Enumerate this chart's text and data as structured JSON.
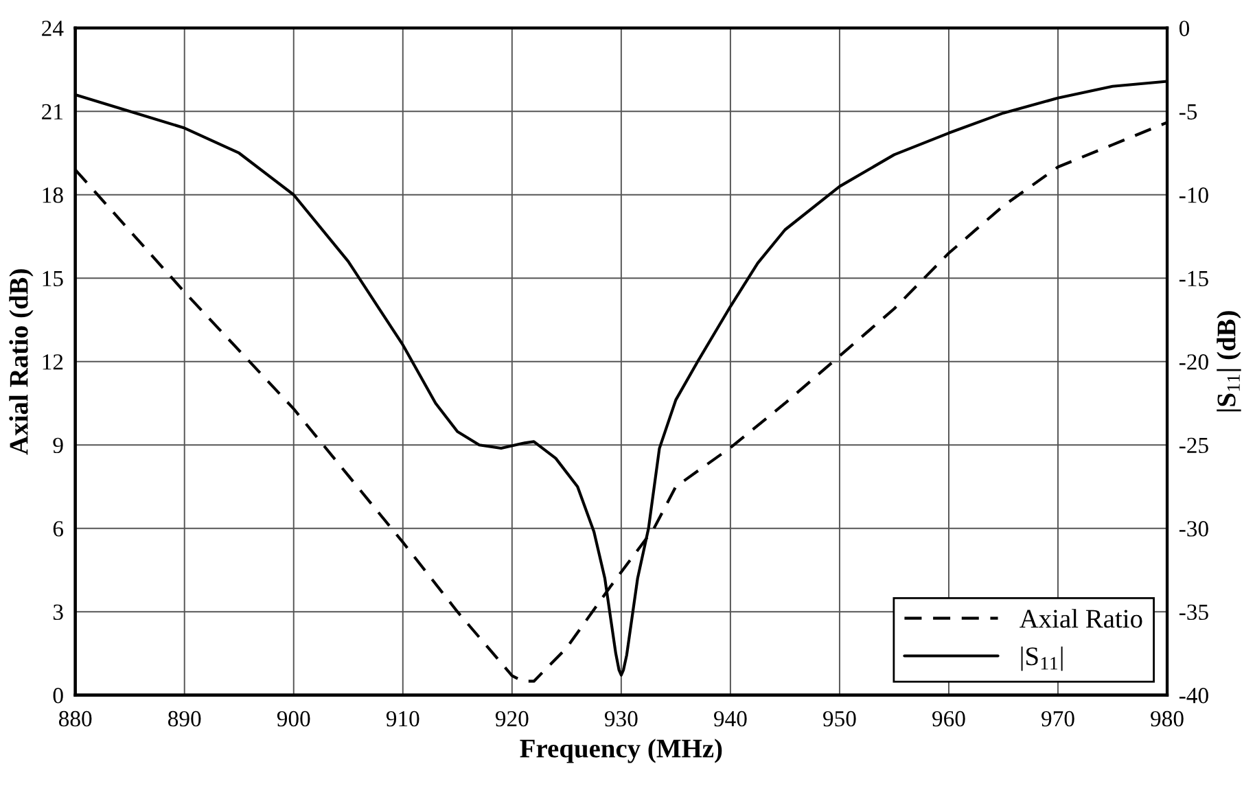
{
  "chart_data": {
    "type": "line",
    "xlabel": "Frequency (MHz)",
    "ylabel": "Axial Ratio (dB)",
    "y2label": "|S$_{11}$| (dB)",
    "xlim": [
      880,
      980
    ],
    "xticks": [
      880,
      890,
      900,
      910,
      920,
      930,
      940,
      950,
      960,
      970,
      980
    ],
    "ylim": [
      0,
      24
    ],
    "yticks": [
      0,
      3,
      6,
      9,
      12,
      15,
      18,
      21,
      24
    ],
    "y2lim": [
      -40,
      0
    ],
    "y2ticks": [
      -40,
      -35,
      -30,
      -25,
      -20,
      -15,
      -10,
      -5,
      0
    ],
    "grid": true,
    "legend": "bottom right",
    "series": [
      {
        "name": "Axial Ratio",
        "color": "#000000",
        "line_style": "dashed",
        "x": [
          880,
          890,
          900,
          910,
          915,
          920,
          921,
          922,
          925,
          929,
          933,
          935,
          940,
          945,
          950,
          955,
          960,
          965,
          970,
          975,
          980
        ],
        "values": [
          18.9,
          14.5,
          10.3,
          5.5,
          3.0,
          0.7,
          0.5,
          0.5,
          1.7,
          3.9,
          6.0,
          7.5,
          8.9,
          10.5,
          12.2,
          13.9,
          15.9,
          17.6,
          19.0,
          19.8,
          20.6
        ]
      },
      {
        "name": "|S$_{11}$|",
        "color": "#000000",
        "line_style": "solid",
        "axis": "y2",
        "x": [
          880,
          885,
          890,
          895,
          900,
          905,
          908,
          910,
          913,
          915,
          917,
          919,
          921,
          922,
          924,
          926,
          927.5,
          928.5,
          929.5,
          929.8,
          930,
          930.2,
          930.5,
          931.5,
          932.5,
          933.5,
          935,
          937,
          940,
          942.5,
          945,
          950,
          955,
          960,
          965,
          970,
          975,
          980
        ],
        "values": [
          -4.0,
          -5.0,
          -6.0,
          -7.5,
          -10.0,
          -14.0,
          -17.0,
          -19.0,
          -22.5,
          -24.2,
          -25.0,
          -25.2,
          -24.9,
          -24.8,
          -25.8,
          -27.5,
          -30.2,
          -33.0,
          -37.5,
          -38.5,
          -38.8,
          -38.5,
          -37.6,
          -33.0,
          -30.0,
          -25.2,
          -22.3,
          -20.0,
          -16.7,
          -14.1,
          -12.1,
          -9.5,
          -7.6,
          -6.3,
          -5.1,
          -4.2,
          -3.5,
          -3.2
        ]
      }
    ]
  }
}
